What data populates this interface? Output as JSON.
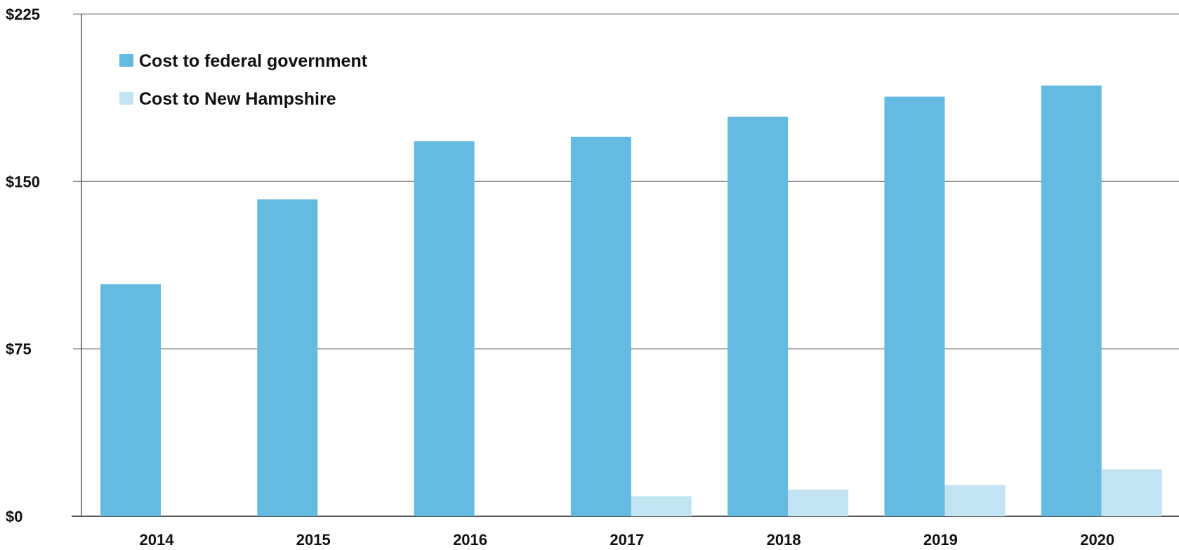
{
  "chart_data": {
    "type": "bar",
    "categories": [
      "2014",
      "2015",
      "2016",
      "2017",
      "2018",
      "2019",
      "2020"
    ],
    "series": [
      {
        "name": "Cost to federal government",
        "color": "#64bae0",
        "values": [
          104,
          142,
          168,
          170,
          179,
          188,
          193
        ]
      },
      {
        "name": "Cost to New Hampshire",
        "color": "#c2e3f2",
        "values": [
          0,
          0,
          0,
          9,
          12,
          14,
          21
        ]
      }
    ],
    "ylim": [
      0,
      225
    ],
    "yticks": [
      0,
      75,
      150,
      225
    ],
    "ytick_labels": [
      "$0",
      "$75",
      "$150",
      "$225"
    ],
    "grid": true,
    "legend_position": "top-left",
    "title": "",
    "xlabel": "",
    "ylabel": ""
  }
}
